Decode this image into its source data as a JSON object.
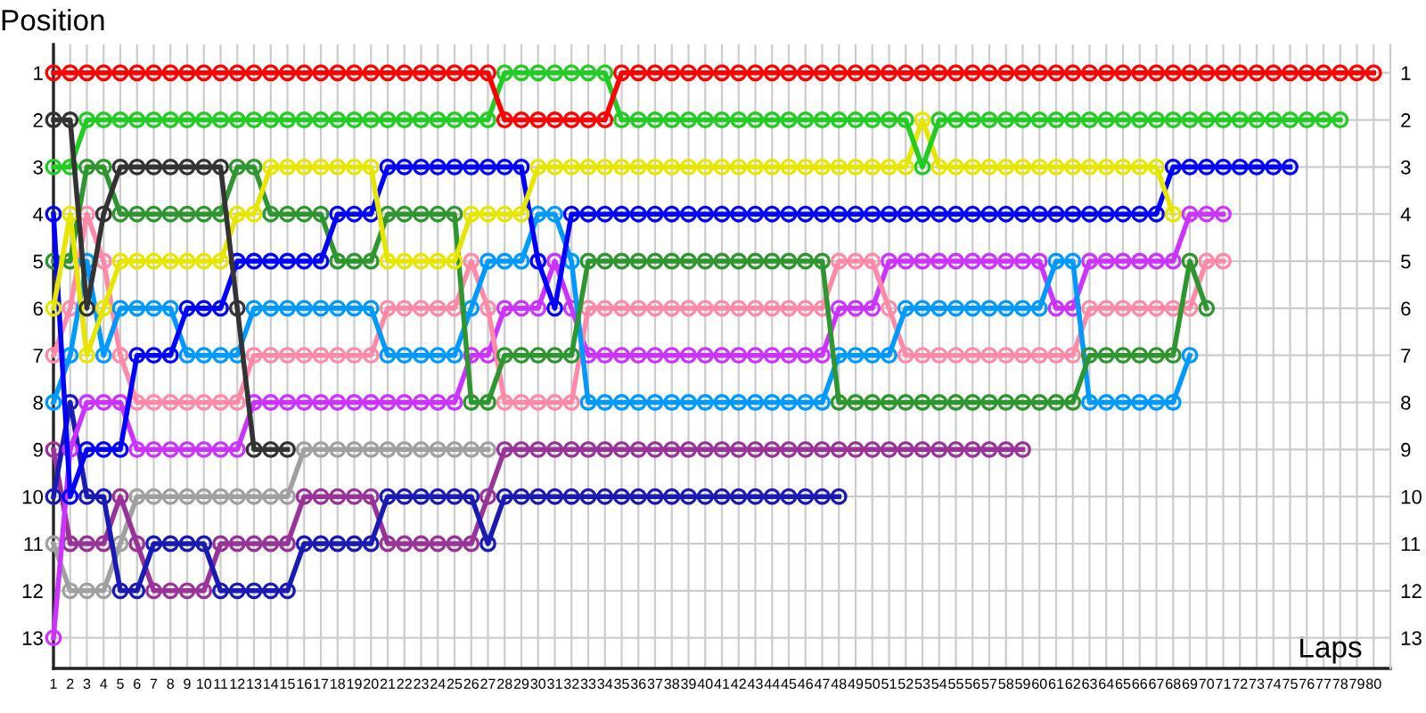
{
  "chart_data": {
    "type": "line",
    "xlabel": "Laps",
    "ylabel": "Position",
    "x": [
      1,
      2,
      3,
      4,
      5,
      6,
      7,
      8,
      9,
      10,
      11,
      12,
      13,
      14,
      15,
      16,
      17,
      18,
      19,
      20,
      21,
      22,
      23,
      24,
      25,
      26,
      27,
      28,
      29,
      30,
      31,
      32,
      33,
      34,
      35,
      36,
      37,
      38,
      39,
      40,
      41,
      42,
      43,
      44,
      45,
      46,
      47,
      48,
      49,
      50,
      51,
      52,
      53,
      54,
      55,
      56,
      57,
      58,
      59,
      60,
      61,
      62,
      63,
      64,
      65,
      66,
      67,
      68,
      69,
      70,
      71,
      72,
      73,
      74,
      75,
      76,
      77,
      78,
      79,
      80
    ],
    "xlim": [
      1,
      81
    ],
    "xticks": [
      1,
      2,
      3,
      4,
      5,
      6,
      7,
      8,
      9,
      10,
      11,
      12,
      13,
      14,
      15,
      16,
      17,
      18,
      19,
      20,
      21,
      22,
      23,
      24,
      25,
      26,
      27,
      28,
      29,
      30,
      31,
      32,
      33,
      34,
      35,
      36,
      37,
      38,
      39,
      40,
      41,
      42,
      43,
      44,
      45,
      46,
      47,
      48,
      49,
      50,
      51,
      52,
      53,
      54,
      55,
      56,
      57,
      58,
      59,
      60,
      61,
      62,
      63,
      64,
      65,
      66,
      67,
      68,
      69,
      70,
      71,
      72,
      73,
      74,
      75,
      76,
      77,
      78,
      79,
      80
    ],
    "ylim": [
      13.65,
      0.4
    ],
    "yticks": [
      1,
      2,
      3,
      4,
      5,
      6,
      7,
      8,
      9,
      10,
      11,
      12,
      13
    ],
    "y2lim": [
      13.65,
      0.4
    ],
    "y2ticks": [
      1,
      2,
      3,
      4,
      5,
      6,
      7,
      8,
      9,
      10,
      11,
      12,
      13
    ],
    "grid": true,
    "marker": "circle",
    "line_style": "solid",
    "series": [
      {
        "color": "#a0a0a0",
        "values": [
          11,
          12,
          12,
          12,
          11,
          10,
          10,
          10,
          10,
          10,
          10,
          10,
          10,
          10,
          10,
          9,
          9,
          9,
          9,
          9,
          9,
          9,
          9,
          9,
          9,
          9,
          9,
          null,
          null,
          null,
          null,
          null,
          null,
          null,
          null,
          null,
          null,
          null,
          null,
          null,
          null,
          null,
          null,
          null,
          null,
          null,
          null,
          null,
          null,
          null,
          null,
          null,
          null,
          null,
          null,
          null,
          null,
          null,
          null,
          null,
          null,
          null,
          null,
          null,
          null,
          null,
          null,
          null,
          null,
          null,
          null,
          null,
          null,
          null,
          null,
          null,
          null,
          null,
          null,
          null
        ]
      },
      {
        "color": "#993399",
        "values": [
          9,
          11,
          11,
          11,
          10,
          11,
          12,
          12,
          12,
          12,
          11,
          11,
          11,
          11,
          11,
          10,
          10,
          10,
          10,
          10,
          11,
          11,
          11,
          11,
          11,
          11,
          10,
          9,
          9,
          9,
          9,
          9,
          9,
          9,
          9,
          9,
          9,
          9,
          9,
          9,
          9,
          9,
          9,
          9,
          9,
          9,
          9,
          9,
          9,
          9,
          9,
          9,
          9,
          9,
          9,
          9,
          9,
          9,
          9,
          null,
          null,
          null,
          null,
          null,
          null,
          null,
          null,
          null,
          null,
          null,
          null,
          null,
          null,
          null,
          null,
          null,
          null,
          null,
          null,
          null
        ]
      },
      {
        "color": "#1a1ab4",
        "values": [
          10,
          8,
          10,
          10,
          12,
          12,
          11,
          11,
          11,
          11,
          12,
          12,
          12,
          12,
          12,
          11,
          11,
          11,
          11,
          11,
          10,
          10,
          10,
          10,
          10,
          10,
          11,
          10,
          10,
          10,
          10,
          10,
          10,
          10,
          10,
          10,
          10,
          10,
          10,
          10,
          10,
          10,
          10,
          10,
          10,
          10,
          10,
          10,
          null,
          null,
          null,
          null,
          null,
          null,
          null,
          null,
          null,
          null,
          null,
          null,
          null,
          null,
          null,
          null,
          null,
          null,
          null,
          null,
          null,
          null,
          null,
          null,
          null,
          null,
          null,
          null,
          null,
          null,
          null,
          null
        ]
      },
      {
        "color": "#cc33ff",
        "values": [
          13,
          9,
          8,
          8,
          8,
          9,
          9,
          9,
          9,
          9,
          9,
          9,
          8,
          8,
          8,
          8,
          8,
          8,
          8,
          8,
          8,
          8,
          8,
          8,
          8,
          7,
          7,
          6,
          6,
          6,
          5,
          6,
          7,
          7,
          7,
          7,
          7,
          7,
          7,
          7,
          7,
          7,
          7,
          7,
          7,
          7,
          7,
          6,
          6,
          6,
          5,
          5,
          5,
          5,
          5,
          5,
          5,
          5,
          5,
          5,
          6,
          6,
          5,
          5,
          5,
          5,
          5,
          5,
          4,
          4,
          4,
          null,
          null,
          null,
          null,
          null,
          null,
          null,
          null,
          null
        ]
      },
      {
        "color": "#ff8aa8",
        "values": [
          7,
          6,
          4,
          5,
          7,
          8,
          8,
          8,
          8,
          8,
          8,
          8,
          7,
          7,
          7,
          7,
          7,
          7,
          7,
          7,
          6,
          6,
          6,
          6,
          6,
          5,
          6,
          8,
          8,
          8,
          8,
          8,
          6,
          6,
          6,
          6,
          6,
          6,
          6,
          6,
          6,
          6,
          6,
          6,
          6,
          6,
          6,
          5,
          5,
          5,
          6,
          7,
          7,
          7,
          7,
          7,
          7,
          7,
          7,
          7,
          7,
          7,
          6,
          6,
          6,
          6,
          6,
          6,
          6,
          5,
          5,
          null,
          null,
          null,
          null,
          null,
          null,
          null,
          null,
          null
        ]
      },
      {
        "color": "#0099ff",
        "values": [
          8,
          7,
          5,
          7,
          6,
          6,
          6,
          6,
          7,
          7,
          7,
          7,
          6,
          6,
          6,
          6,
          6,
          6,
          6,
          6,
          7,
          7,
          7,
          7,
          7,
          6,
          5,
          5,
          5,
          4,
          4,
          5,
          8,
          8,
          8,
          8,
          8,
          8,
          8,
          8,
          8,
          8,
          8,
          8,
          8,
          8,
          8,
          7,
          7,
          7,
          7,
          6,
          6,
          6,
          6,
          6,
          6,
          6,
          6,
          6,
          5,
          5,
          8,
          8,
          8,
          8,
          8,
          8,
          7,
          null,
          null,
          null,
          null,
          null,
          null,
          null,
          null,
          null,
          null,
          null
        ]
      },
      {
        "color": "#2e962e",
        "values": [
          5,
          5,
          3,
          3,
          4,
          4,
          4,
          4,
          4,
          4,
          4,
          3,
          3,
          4,
          4,
          4,
          4,
          5,
          5,
          5,
          4,
          4,
          4,
          4,
          4,
          8,
          8,
          7,
          7,
          7,
          7,
          7,
          5,
          5,
          5,
          5,
          5,
          5,
          5,
          5,
          5,
          5,
          5,
          5,
          5,
          5,
          5,
          8,
          8,
          8,
          8,
          8,
          8,
          8,
          8,
          8,
          8,
          8,
          8,
          8,
          8,
          8,
          7,
          7,
          7,
          7,
          7,
          7,
          5,
          6,
          null,
          null,
          null,
          null,
          null,
          null,
          null,
          null,
          null,
          null
        ]
      },
      {
        "color": "#0000ff",
        "values": [
          4,
          10,
          9,
          9,
          9,
          7,
          7,
          7,
          6,
          6,
          6,
          5,
          5,
          5,
          5,
          5,
          5,
          4,
          4,
          4,
          3,
          3,
          3,
          3,
          3,
          3,
          3,
          3,
          3,
          5,
          6,
          4,
          4,
          4,
          4,
          4,
          4,
          4,
          4,
          4,
          4,
          4,
          4,
          4,
          4,
          4,
          4,
          4,
          4,
          4,
          4,
          4,
          4,
          4,
          4,
          4,
          4,
          4,
          4,
          4,
          4,
          4,
          4,
          4,
          4,
          4,
          4,
          3,
          3,
          3,
          3,
          3,
          3,
          3,
          3,
          null,
          null,
          null,
          null,
          null
        ]
      },
      {
        "color": "#e6e600",
        "values": [
          6,
          4,
          7,
          6,
          5,
          5,
          5,
          5,
          5,
          5,
          5,
          4,
          4,
          3,
          3,
          3,
          3,
          3,
          3,
          3,
          5,
          5,
          5,
          5,
          5,
          4,
          4,
          4,
          4,
          3,
          3,
          3,
          3,
          3,
          3,
          3,
          3,
          3,
          3,
          3,
          3,
          3,
          3,
          3,
          3,
          3,
          3,
          3,
          3,
          3,
          3,
          3,
          2,
          3,
          3,
          3,
          3,
          3,
          3,
          3,
          3,
          3,
          3,
          3,
          3,
          3,
          3,
          4,
          null,
          null,
          null,
          null,
          null,
          null,
          null,
          null,
          null,
          null,
          null,
          null
        ]
      },
      {
        "color": "#22cc22",
        "values": [
          3,
          3,
          2,
          2,
          2,
          2,
          2,
          2,
          2,
          2,
          2,
          2,
          2,
          2,
          2,
          2,
          2,
          2,
          2,
          2,
          2,
          2,
          2,
          2,
          2,
          2,
          2,
          1,
          1,
          1,
          1,
          1,
          1,
          1,
          2,
          2,
          2,
          2,
          2,
          2,
          2,
          2,
          2,
          2,
          2,
          2,
          2,
          2,
          2,
          2,
          2,
          2,
          3,
          2,
          2,
          2,
          2,
          2,
          2,
          2,
          2,
          2,
          2,
          2,
          2,
          2,
          2,
          2,
          2,
          2,
          2,
          2,
          2,
          2,
          2,
          2,
          2,
          2,
          null,
          null
        ]
      },
      {
        "color": "#ff0000",
        "values": [
          1,
          1,
          1,
          1,
          1,
          1,
          1,
          1,
          1,
          1,
          1,
          1,
          1,
          1,
          1,
          1,
          1,
          1,
          1,
          1,
          1,
          1,
          1,
          1,
          1,
          1,
          1,
          2,
          2,
          2,
          2,
          2,
          2,
          2,
          1,
          1,
          1,
          1,
          1,
          1,
          1,
          1,
          1,
          1,
          1,
          1,
          1,
          1,
          1,
          1,
          1,
          1,
          1,
          1,
          1,
          1,
          1,
          1,
          1,
          1,
          1,
          1,
          1,
          1,
          1,
          1,
          1,
          1,
          1,
          1,
          1,
          1,
          1,
          1,
          1,
          1,
          1,
          1,
          1,
          1
        ]
      },
      {
        "color": "#333333",
        "values": [
          2,
          2,
          6,
          4,
          3,
          3,
          3,
          3,
          3,
          3,
          3,
          6,
          9,
          9,
          9,
          null,
          null,
          null,
          null,
          null,
          null,
          null,
          null,
          null,
          null,
          null,
          null,
          null,
          null,
          null,
          null,
          null,
          null,
          null,
          null,
          null,
          null,
          null,
          null,
          null,
          null,
          null,
          null,
          null,
          null,
          null,
          null,
          null,
          null,
          null,
          null,
          null,
          null,
          null,
          null,
          null,
          null,
          null,
          null,
          null,
          null,
          null,
          null,
          null,
          null,
          null,
          null,
          null,
          null,
          null,
          null,
          null,
          null,
          null,
          null,
          null,
          null,
          null,
          null,
          null
        ]
      }
    ]
  }
}
